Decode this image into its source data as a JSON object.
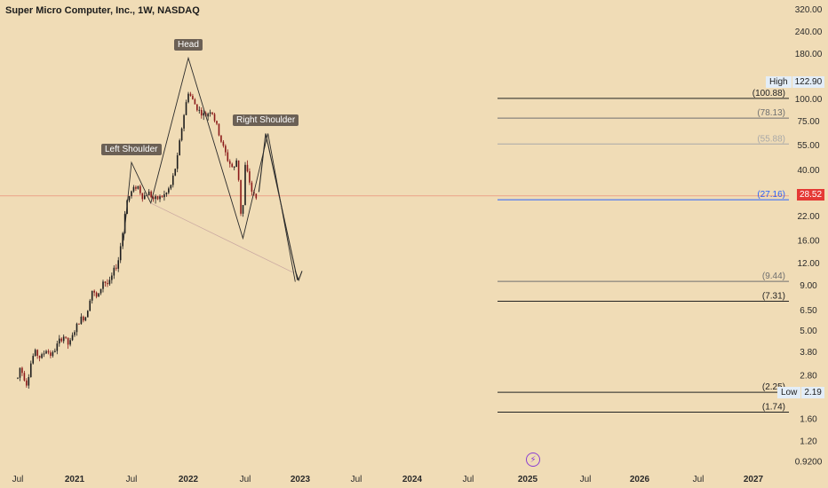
{
  "header": {
    "title": "Super Micro Computer, Inc., 1W, NASDAQ"
  },
  "chart_data": {
    "type": "candlestick",
    "symbol": "Super Micro Computer, Inc.",
    "timeframe": "1W",
    "exchange": "NASDAQ",
    "y_scale": "log",
    "ylim": [
      0.82,
      360
    ],
    "x_ticks": [
      "Jul",
      "2021",
      "Jul",
      "2022",
      "Jul",
      "2023",
      "Jul",
      "2024",
      "Jul",
      "2025",
      "Jul",
      "2026",
      "Jul",
      "2027"
    ],
    "y_ticks": [
      "320.00",
      "240.00",
      "180.00",
      "100.00",
      "75.00",
      "55.00",
      "40.00",
      "22.00",
      "16.00",
      "12.00",
      "9.00",
      "6.50",
      "5.00",
      "3.80",
      "2.80",
      "1.60",
      "1.20",
      "0.9200"
    ],
    "price_path": [
      [
        0.0,
        2.7
      ],
      [
        0.02,
        3.1
      ],
      [
        0.05,
        2.8
      ],
      [
        0.08,
        2.5
      ],
      [
        0.1,
        2.9
      ],
      [
        0.12,
        3.4
      ],
      [
        0.15,
        3.8
      ],
      [
        0.2,
        3.5
      ],
      [
        0.25,
        3.9
      ],
      [
        0.3,
        3.6
      ],
      [
        0.35,
        4.2
      ],
      [
        0.4,
        4.7
      ],
      [
        0.45,
        4.1
      ],
      [
        0.5,
        5.0
      ],
      [
        0.55,
        5.8
      ],
      [
        0.6,
        6.0
      ],
      [
        0.65,
        8.5
      ],
      [
        0.7,
        7.5
      ],
      [
        0.75,
        9.5
      ],
      [
        0.8,
        9.0
      ],
      [
        0.85,
        11.0
      ],
      [
        0.88,
        12.0
      ],
      [
        0.9,
        14.5
      ],
      [
        0.92,
        17.0
      ],
      [
        0.95,
        26.0
      ],
      [
        1.0,
        30.0
      ],
      [
        1.05,
        33.0
      ],
      [
        1.1,
        28.0
      ],
      [
        1.15,
        30.0
      ],
      [
        1.2,
        27.0
      ],
      [
        1.25,
        28.0
      ],
      [
        1.3,
        29.0
      ],
      [
        1.35,
        33.0
      ],
      [
        1.4,
        45.0
      ],
      [
        1.45,
        75.0
      ],
      [
        1.5,
        110.0
      ],
      [
        1.55,
        95.0
      ],
      [
        1.6,
        85.0
      ],
      [
        1.65,
        80.0
      ],
      [
        1.7,
        88.0
      ],
      [
        1.75,
        70.0
      ],
      [
        1.8,
        55.0
      ],
      [
        1.85,
        45.0
      ],
      [
        1.88,
        42.0
      ],
      [
        1.9,
        40.0
      ],
      [
        1.93,
        47.0
      ],
      [
        1.95,
        30.0
      ],
      [
        1.97,
        19.0
      ],
      [
        2.0,
        42.0
      ],
      [
        2.03,
        36.0
      ],
      [
        2.06,
        30.0
      ],
      [
        2.1,
        27.2
      ]
    ],
    "last_price": "28.52",
    "high": {
      "label": "High",
      "value": "122.90"
    },
    "low": {
      "label": "Low",
      "value": "2.19"
    },
    "levels": [
      {
        "value": 100.88,
        "label": "(100.88)",
        "color": "#222222"
      },
      {
        "value": 78.13,
        "label": "(78.13)",
        "color": "#6f6f6f"
      },
      {
        "value": 55.88,
        "label": "(55.88)",
        "color": "#a8a8a8"
      },
      {
        "value": 27.16,
        "label": "(27.16)",
        "color": "#2962ff"
      },
      {
        "value": 9.44,
        "label": "(9.44)",
        "color": "#6f6f6f"
      },
      {
        "value": 7.31,
        "label": "(7.31)",
        "color": "#222222"
      },
      {
        "value": 2.25,
        "label": "(2.25)",
        "color": "#222222"
      },
      {
        "value": 1.74,
        "label": "(1.74)",
        "color": "#222222"
      }
    ],
    "annotations": [
      {
        "text": "Left Shoulder",
        "value": 44.0
      },
      {
        "text": "Head",
        "value": 170.0
      },
      {
        "text": "Right Shoulder",
        "value": 64.0
      }
    ],
    "colors": {
      "background": "#f0dcb6",
      "up": "#1d1d1d",
      "down": "#8b1a1a",
      "last_price": "#e53935",
      "pattern": "#2b2b2b",
      "tag_bg": "#6b6055"
    }
  }
}
